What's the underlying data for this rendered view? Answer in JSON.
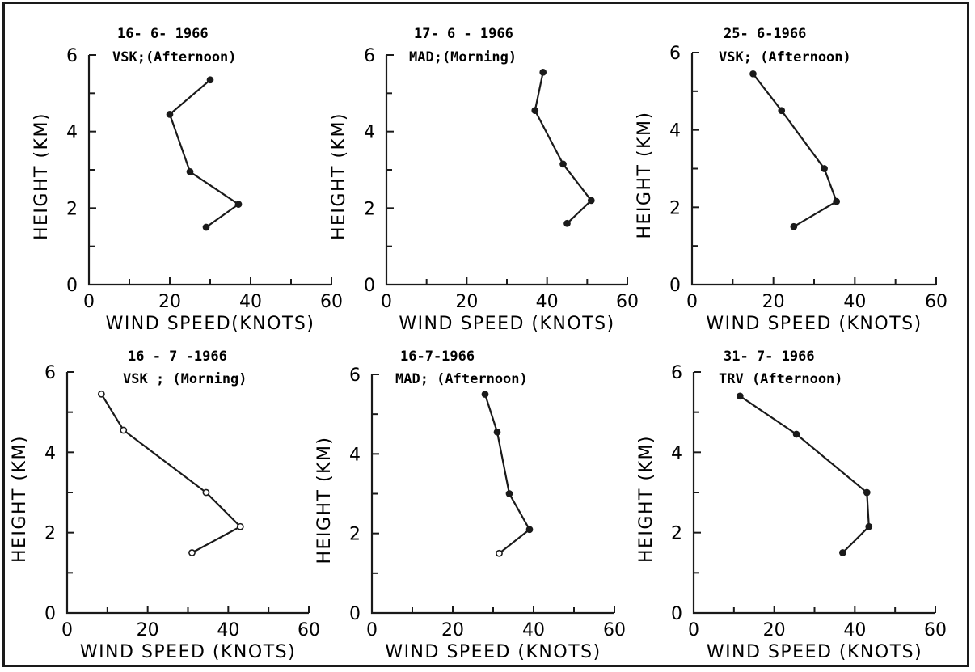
{
  "figure": {
    "colors": {
      "ink": "#1a1a1a",
      "background": "#ffffff"
    }
  },
  "chart_data": [
    {
      "type": "line",
      "title": "16- 6- 1966",
      "subtitle": "VSK;(Afternoon)",
      "xlabel": "WIND SPEED(KNOTS)",
      "ylabel": "HEIGHT (KM)",
      "xlim": [
        0,
        60
      ],
      "ylim": [
        0,
        6
      ],
      "xticks": [
        "0",
        "20",
        "40",
        "60"
      ],
      "yticks": [
        "0",
        "2",
        "4",
        "6"
      ],
      "grid": false,
      "marker": "filled",
      "series": [
        {
          "x": [
            29,
            37,
            25,
            20,
            30
          ],
          "y": [
            1.5,
            2.1,
            2.95,
            4.45,
            5.35
          ]
        }
      ]
    },
    {
      "type": "line",
      "title": "17- 6 - 1966",
      "subtitle": "MAD;(Morning)",
      "xlabel": "WIND SPEED (KNOTS)",
      "ylabel": "HEIGHT (KM)",
      "xlim": [
        0,
        60
      ],
      "ylim": [
        0,
        6
      ],
      "xticks": [
        "0",
        "20",
        "40",
        "60"
      ],
      "yticks": [
        "0",
        "2",
        "4",
        "6"
      ],
      "grid": false,
      "marker": "filled",
      "series": [
        {
          "x": [
            45,
            51,
            44,
            37,
            39
          ],
          "y": [
            1.6,
            2.2,
            3.15,
            4.55,
            5.55
          ]
        }
      ]
    },
    {
      "type": "line",
      "title": "25- 6-1966",
      "subtitle": "VSK; (Afternoon)",
      "xlabel": "WIND SPEED (KNOTS)",
      "ylabel": "HEIGHT (KM)",
      "xlim": [
        0,
        60
      ],
      "ylim": [
        0,
        6
      ],
      "xticks": [
        "0",
        "20",
        "40",
        "60"
      ],
      "yticks": [
        "0",
        "2",
        "4",
        "6"
      ],
      "grid": false,
      "marker": "filled",
      "series": [
        {
          "x": [
            25,
            35.5,
            32.5,
            22,
            15
          ],
          "y": [
            1.5,
            2.15,
            3.0,
            4.5,
            5.45
          ]
        }
      ]
    },
    {
      "type": "line",
      "title": "16 - 7 -1966",
      "subtitle": "VSK ; (Morning)",
      "xlabel": "WIND SPEED (KNOTS)",
      "ylabel": "HEIGHT (KM)",
      "xlim": [
        0,
        60
      ],
      "ylim": [
        0,
        6
      ],
      "xticks": [
        "0",
        "20",
        "40",
        "60"
      ],
      "yticks": [
        "0",
        "2",
        "4",
        "6"
      ],
      "grid": false,
      "marker": "open",
      "series": [
        {
          "x": [
            31,
            43,
            34.5,
            14,
            8.5
          ],
          "y": [
            1.5,
            2.15,
            3.0,
            4.55,
            5.45
          ]
        }
      ]
    },
    {
      "type": "line",
      "title": "16-7-1966",
      "subtitle": "MAD; (Afternoon)",
      "xlabel": "WIND SPEED (KNOTS)",
      "ylabel": "HEIGHT (KM)",
      "xlim": [
        0,
        60
      ],
      "ylim": [
        0,
        6
      ],
      "xticks": [
        "0",
        "20",
        "40",
        "60"
      ],
      "yticks": [
        "0",
        "2",
        "4",
        "6"
      ],
      "grid": false,
      "marker": "mixed",
      "series": [
        {
          "x": [
            31.5,
            39,
            34,
            31,
            28
          ],
          "y": [
            1.5,
            2.1,
            3.0,
            4.55,
            5.5
          ]
        }
      ]
    },
    {
      "type": "line",
      "title": "31- 7- 1966",
      "subtitle": "TRV (Afternoon)",
      "xlabel": "WIND SPEED (KNOTS)",
      "ylabel": "HEIGHT (KM)",
      "xlim": [
        0,
        60
      ],
      "ylim": [
        0,
        6
      ],
      "xticks": [
        "0",
        "20",
        "40",
        "60"
      ],
      "yticks": [
        "0",
        "2",
        "4",
        "6"
      ],
      "grid": false,
      "marker": "filled",
      "series": [
        {
          "x": [
            37,
            43.5,
            43,
            25.5,
            11.5
          ],
          "y": [
            1.5,
            2.15,
            3.0,
            4.45,
            5.4
          ]
        }
      ]
    }
  ]
}
